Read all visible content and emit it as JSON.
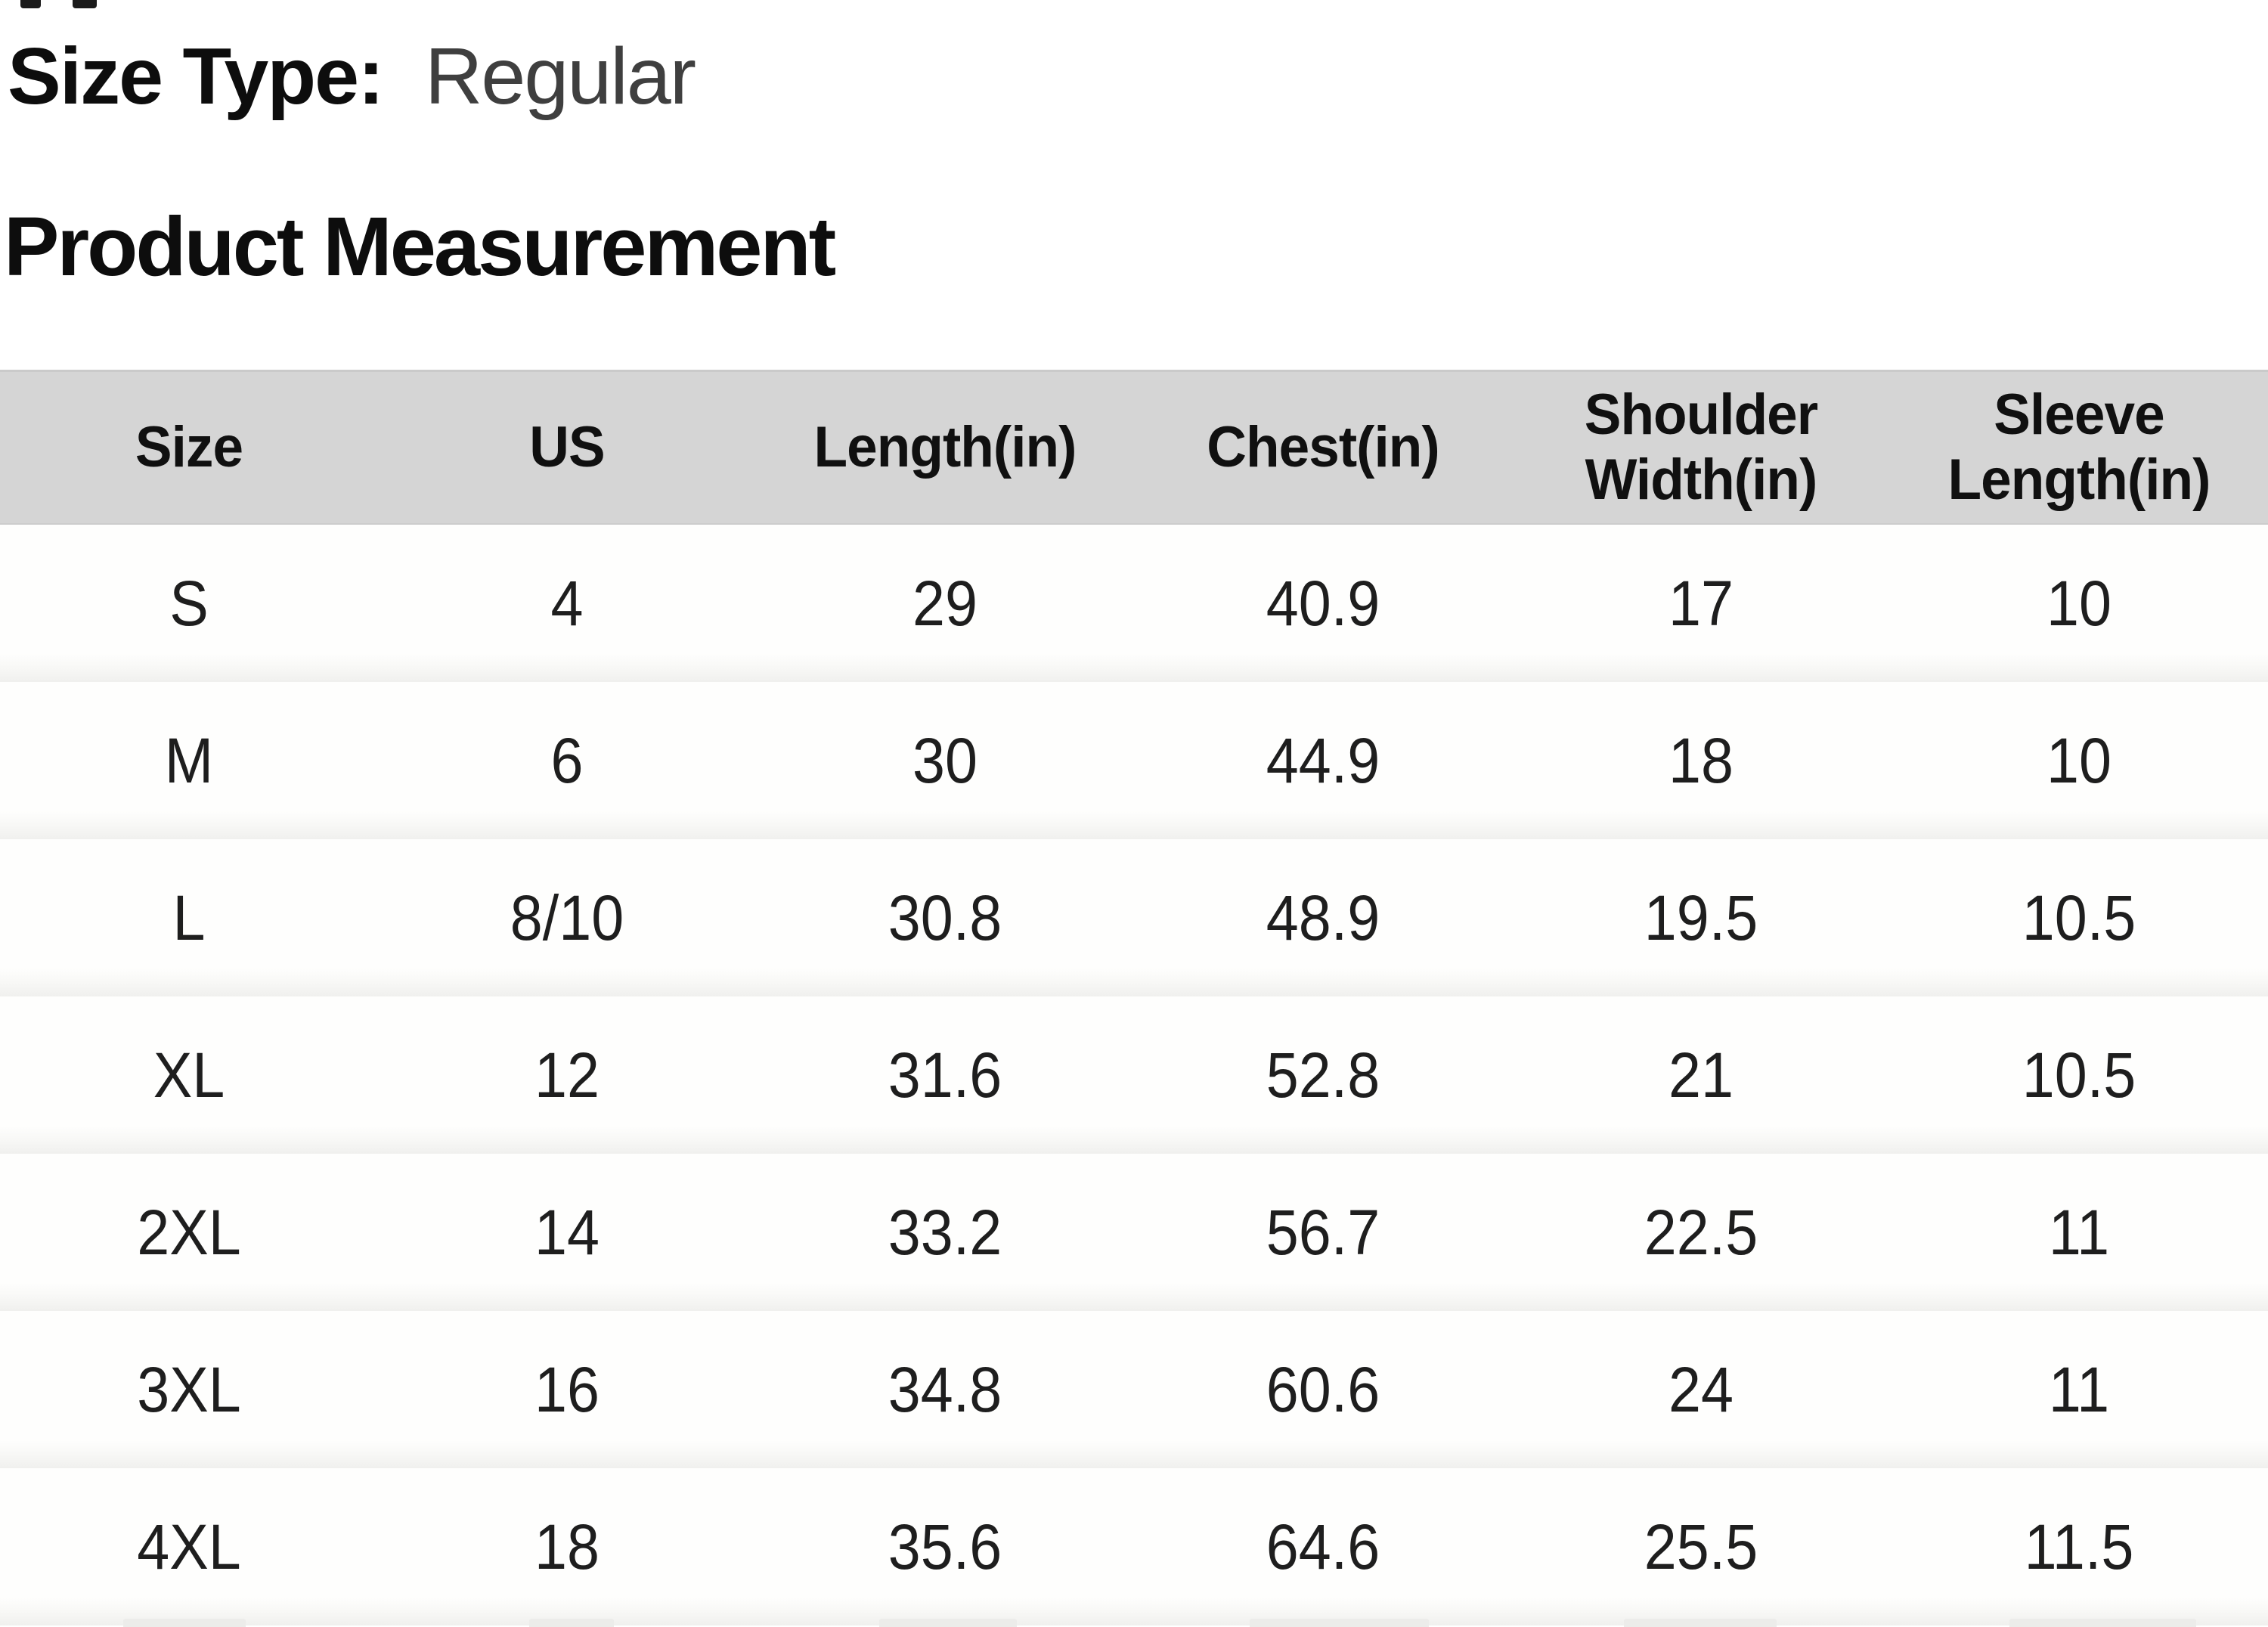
{
  "page": {
    "size_type_label": "Size Type:",
    "size_type_value": "Regular",
    "section_title": "Product Measurement"
  },
  "table": {
    "columns": [
      "Size",
      "US",
      "Length(in)",
      "Chest(in)",
      "Shoulder\nWidth(in)",
      "Sleeve\nLength(in)"
    ],
    "rows": [
      [
        "S",
        "4",
        "29",
        "40.9",
        "17",
        "10"
      ],
      [
        "M",
        "6",
        "30",
        "44.9",
        "18",
        "10"
      ],
      [
        "L",
        "8/10",
        "30.8",
        "48.9",
        "19.5",
        "10.5"
      ],
      [
        "XL",
        "12",
        "31.6",
        "52.8",
        "21",
        "10.5"
      ],
      [
        "2XL",
        "14",
        "33.2",
        "56.7",
        "22.5",
        "11"
      ],
      [
        "3XL",
        "16",
        "34.8",
        "60.6",
        "24",
        "11"
      ],
      [
        "4XL",
        "18",
        "35.6",
        "64.6",
        "25.5",
        "11.5"
      ]
    ]
  },
  "colors": {
    "page_bg": "#ffffff",
    "header_row_bg": "#d5d5d5",
    "heading_text": "#0d0d0d",
    "size_type_value_text": "#3f3f3f",
    "body_text": "#1e1e1e",
    "row_separator": "#f0f0ee"
  }
}
